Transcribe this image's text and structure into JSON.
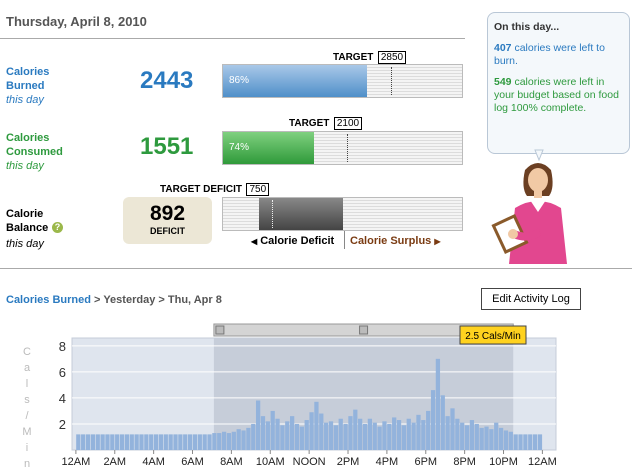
{
  "header": {
    "date": "Thursday, April 8, 2010"
  },
  "burned": {
    "label": "Calories Burned",
    "sub": "this day",
    "value": 2443,
    "target_label": "TARGET",
    "target": 2850,
    "percent_label": "86%",
    "xlim": [
      0,
      4060
    ]
  },
  "consumed": {
    "label": "Calories Consumed",
    "sub": "this day",
    "value": 1551,
    "target_label": "TARGET",
    "target": 2100,
    "percent_label": "74%",
    "xlim": [
      0,
      4060
    ]
  },
  "balance": {
    "label": "Calorie Balance",
    "sub": "this day",
    "value": 892,
    "value_caption": "DEFICIT",
    "target_label": "TARGET DEFICIT",
    "target": 750,
    "xlim": [
      1270,
      -1250
    ],
    "left_label": "Calorie Deficit",
    "right_label": "Calorie Surplus"
  },
  "sidebar": {
    "title": "On this day...",
    "notes": [
      {
        "value": 407,
        "text": "calories were left to burn."
      },
      {
        "value": 549,
        "text": "calories were left in your budget based on food log 100% complete."
      }
    ]
  },
  "breadcrumb": {
    "items": [
      "Calories Burned",
      "Yesterday",
      "Thu, Apr 8"
    ],
    "separator": ">"
  },
  "button": "Edit Activity Log",
  "chart_data": {
    "type": "bar",
    "y_label": "Cals/Min",
    "tooltip": "2.5 Cals/Min",
    "color": "#93b3dc",
    "highlight": [
      7.1,
      22.5
    ],
    "xlim": [
      -0.2,
      24.7
    ],
    "ylim": [
      0,
      8.6
    ],
    "yticks": [
      2,
      4,
      6,
      8
    ],
    "grid": true,
    "xticks": [
      {
        "value": 0,
        "label": "12AM"
      },
      {
        "value": 2,
        "label": "2AM"
      },
      {
        "value": 4,
        "label": "4AM"
      },
      {
        "value": 6,
        "label": "6AM"
      },
      {
        "value": 8,
        "label": "8AM"
      },
      {
        "value": 10,
        "label": "10AM"
      },
      {
        "value": 12,
        "label": "NOON"
      },
      {
        "value": 14,
        "label": "2PM"
      },
      {
        "value": 16,
        "label": "4PM"
      },
      {
        "value": 18,
        "label": "6PM"
      },
      {
        "value": 20,
        "label": "8PM"
      },
      {
        "value": 22,
        "label": "10PM"
      },
      {
        "value": 24,
        "label": "12AM"
      }
    ],
    "x": [
      0,
      0.25,
      0.5,
      0.75,
      1,
      1.25,
      1.5,
      1.75,
      2,
      2.25,
      2.5,
      2.75,
      3,
      3.25,
      3.5,
      3.75,
      4,
      4.25,
      4.5,
      4.75,
      5,
      5.25,
      5.5,
      5.75,
      6,
      6.25,
      6.5,
      6.75,
      7,
      7.25,
      7.5,
      7.75,
      8,
      8.25,
      8.5,
      8.75,
      9,
      9.25,
      9.5,
      9.75,
      10,
      10.25,
      10.5,
      10.75,
      11,
      11.25,
      11.5,
      11.75,
      12,
      12.25,
      12.5,
      12.75,
      13,
      13.25,
      13.5,
      13.75,
      14,
      14.25,
      14.5,
      14.75,
      15,
      15.25,
      15.5,
      15.75,
      16,
      16.25,
      16.5,
      16.75,
      17,
      17.25,
      17.5,
      17.75,
      18,
      18.25,
      18.5,
      18.75,
      19,
      19.25,
      19.5,
      19.75,
      20,
      20.25,
      20.5,
      20.75,
      21,
      21.25,
      21.5,
      21.75,
      22,
      22.25,
      22.5,
      22.75,
      23,
      23.25,
      23.5,
      23.75
    ],
    "values": [
      1.2,
      1.2,
      1.2,
      1.2,
      1.2,
      1.2,
      1.2,
      1.2,
      1.2,
      1.2,
      1.2,
      1.2,
      1.2,
      1.2,
      1.2,
      1.2,
      1.2,
      1.2,
      1.2,
      1.2,
      1.2,
      1.2,
      1.2,
      1.2,
      1.2,
      1.2,
      1.2,
      1.2,
      1.3,
      1.3,
      1.4,
      1.3,
      1.4,
      1.6,
      1.5,
      1.7,
      2.0,
      3.8,
      2.6,
      2.2,
      3.0,
      2.4,
      1.9,
      2.2,
      2.6,
      2.0,
      1.8,
      2.3,
      2.9,
      3.7,
      2.8,
      2.1,
      2.2,
      1.9,
      2.4,
      2.0,
      2.6,
      3.1,
      2.4,
      2.0,
      2.4,
      2.1,
      1.8,
      2.2,
      2.0,
      2.5,
      2.3,
      1.9,
      2.4,
      2.1,
      2.7,
      2.3,
      3.0,
      4.6,
      7.0,
      4.2,
      2.6,
      3.2,
      2.4,
      2.1,
      1.9,
      2.3,
      2.0,
      1.7,
      1.8,
      1.6,
      2.1,
      1.7,
      1.5,
      1.4,
      1.2,
      1.2,
      1.2,
      1.2,
      1.2,
      1.2
    ]
  }
}
